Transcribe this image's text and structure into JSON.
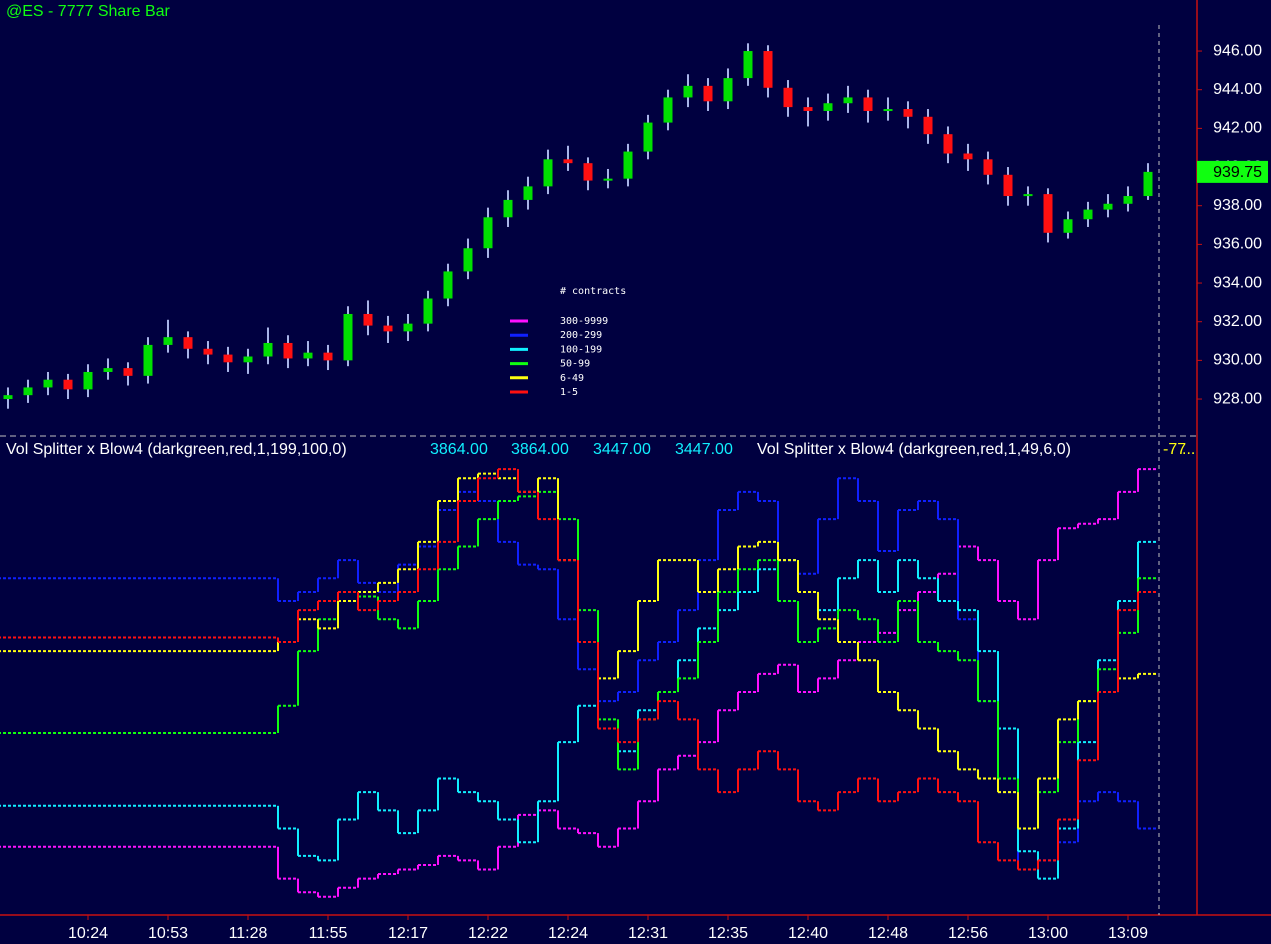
{
  "chart_data": [
    {
      "type": "candlestick",
      "title": "@ES - 7777 Share Bar",
      "open": [
        928.0,
        928.2,
        928.6,
        929.0,
        928.5,
        929.4,
        929.6,
        929.2,
        930.8,
        931.2,
        930.6,
        930.3,
        929.9,
        930.2,
        930.9,
        930.1,
        930.4,
        930.0,
        932.4,
        931.8,
        931.5,
        931.9,
        933.2,
        934.6,
        935.8,
        937.4,
        938.3,
        939.0,
        940.4,
        940.2,
        939.3,
        939.4,
        940.8,
        942.3,
        943.6,
        944.2,
        943.4,
        944.6,
        946.0,
        944.1,
        943.1,
        942.9,
        943.3,
        943.6,
        942.9,
        943.0,
        942.6,
        941.7,
        940.7,
        940.4,
        939.6,
        938.5,
        938.6,
        936.6,
        937.3,
        937.8,
        938.1,
        938.5
      ],
      "high": [
        928.6,
        929.0,
        929.4,
        929.3,
        929.8,
        930.1,
        929.9,
        931.2,
        932.1,
        931.5,
        931.0,
        930.7,
        930.6,
        931.7,
        931.3,
        931.0,
        930.8,
        932.8,
        933.1,
        932.3,
        932.4,
        933.6,
        935.0,
        936.3,
        937.9,
        938.8,
        939.5,
        940.9,
        941.1,
        940.5,
        939.9,
        941.2,
        942.7,
        944.0,
        944.8,
        944.6,
        945.1,
        946.4,
        946.3,
        944.5,
        943.6,
        943.8,
        944.2,
        944.0,
        943.6,
        943.4,
        943.0,
        942.1,
        941.2,
        940.8,
        940.0,
        939.0,
        938.9,
        937.7,
        938.2,
        938.6,
        939.0,
        940.2
      ],
      "low": [
        927.5,
        927.8,
        928.2,
        928.0,
        928.1,
        929.0,
        928.7,
        928.8,
        930.4,
        930.1,
        929.8,
        929.4,
        929.3,
        929.8,
        929.6,
        929.7,
        929.5,
        929.7,
        931.3,
        930.9,
        931.0,
        931.5,
        932.8,
        934.2,
        935.3,
        936.9,
        937.8,
        938.6,
        939.8,
        938.8,
        938.9,
        939.0,
        940.4,
        941.9,
        943.1,
        942.9,
        943.0,
        944.2,
        943.6,
        942.6,
        942.1,
        942.4,
        942.8,
        942.3,
        942.4,
        942.0,
        941.2,
        940.2,
        939.8,
        939.1,
        938.0,
        938.0,
        936.1,
        936.3,
        936.9,
        937.4,
        937.7,
        938.3
      ],
      "close": [
        928.2,
        928.6,
        929.0,
        928.5,
        929.4,
        929.6,
        929.2,
        930.8,
        931.2,
        930.6,
        930.3,
        929.9,
        930.2,
        930.9,
        930.1,
        930.4,
        930.0,
        932.4,
        931.8,
        931.5,
        931.9,
        933.2,
        934.6,
        935.8,
        937.4,
        938.3,
        939.0,
        940.4,
        940.2,
        939.3,
        939.4,
        940.8,
        942.3,
        943.6,
        944.2,
        943.4,
        944.6,
        946.0,
        944.1,
        943.1,
        942.9,
        943.3,
        943.6,
        942.9,
        943.0,
        942.6,
        941.7,
        940.7,
        940.4,
        939.6,
        938.5,
        938.6,
        936.6,
        937.3,
        937.8,
        938.1,
        938.5,
        939.75
      ],
      "up_color": "#00e000",
      "down_color": "#ff1010",
      "wick_color": "#a8b4e8",
      "ylim": [
        926.14,
        948.64
      ],
      "yticks": [
        {
          "value": 928,
          "label": "928.00"
        },
        {
          "value": 930,
          "label": "930.00"
        },
        {
          "value": 932,
          "label": "932.00"
        },
        {
          "value": 934,
          "label": "934.00"
        },
        {
          "value": 936,
          "label": "936.00"
        },
        {
          "value": 938,
          "label": "938.00"
        },
        {
          "value": 940,
          "label": "940.00"
        },
        {
          "value": 942,
          "label": "942.00"
        },
        {
          "value": 944,
          "label": "944.00"
        },
        {
          "value": 946,
          "label": "946.00"
        }
      ],
      "grid": false
    },
    {
      "type": "step",
      "annotations": [
        "Vol Splitter x Blow4 (darkgreen,red,1,199,100,0)",
        "3864.00",
        "3864.00",
        "3447.00",
        "3447.00",
        "Vol Splitter x Blow4 (darkgreen,red,1,49,6,0)",
        "-77",
        "..."
      ],
      "legend_title": "# contracts",
      "categories": [
        null,
        null,
        null,
        null,
        "10:24",
        null,
        null,
        null,
        "10:53",
        null,
        null,
        null,
        "11:28",
        null,
        null,
        null,
        "11:55",
        null,
        null,
        null,
        "12:17",
        null,
        null,
        null,
        "12:22",
        null,
        null,
        null,
        "12:24",
        null,
        null,
        null,
        "12:31",
        null,
        null,
        null,
        "12:35",
        null,
        null,
        null,
        "12:40",
        null,
        null,
        null,
        "12:48",
        null,
        null,
        null,
        "12:56",
        null,
        null,
        null,
        "13:00",
        null,
        null,
        null,
        "13:09",
        null
      ],
      "series": [
        {
          "name": "300-9999",
          "color": "#ff10ff",
          "values": [
            15,
            15,
            15,
            15,
            15,
            15,
            15,
            15,
            15,
            15,
            15,
            15,
            15,
            15,
            8,
            5,
            4,
            6,
            8,
            9,
            10,
            11,
            13,
            12,
            10,
            15,
            22,
            23,
            19,
            18,
            15,
            19,
            25,
            32,
            35,
            38,
            45,
            49,
            53,
            55,
            49,
            52,
            56,
            60,
            62,
            67,
            71,
            75,
            81,
            78,
            69,
            65,
            78,
            85,
            86,
            87,
            93,
            98
          ]
        },
        {
          "name": "200-299",
          "color": "#1020ff",
          "values": [
            74,
            74,
            74,
            74,
            74,
            74,
            74,
            74,
            74,
            74,
            74,
            74,
            74,
            74,
            69,
            71,
            74,
            78,
            73,
            71,
            77,
            81,
            89,
            93,
            91,
            82,
            77,
            76,
            65,
            54,
            47,
            49,
            56,
            60,
            67,
            78,
            89,
            93,
            91,
            78,
            75,
            87,
            96,
            91,
            80,
            89,
            91,
            87,
            65,
            47,
            27,
            10,
            12,
            16,
            25,
            27,
            25,
            19
          ]
        },
        {
          "name": "100-199",
          "color": "#10f0ff",
          "values": [
            24,
            24,
            24,
            24,
            24,
            24,
            24,
            24,
            24,
            24,
            24,
            24,
            24,
            24,
            19,
            13,
            12,
            21,
            27,
            23,
            18,
            23,
            30,
            27,
            25,
            21,
            16,
            25,
            38,
            46,
            41,
            36,
            45,
            49,
            56,
            63,
            67,
            71,
            76,
            78,
            71,
            67,
            74,
            78,
            71,
            78,
            74,
            69,
            67,
            58,
            41,
            14,
            8,
            19,
            38,
            56,
            69,
            82
          ]
        },
        {
          "name": "50-99",
          "color": "#10ff10",
          "values": [
            40,
            40,
            40,
            40,
            40,
            40,
            40,
            40,
            40,
            40,
            40,
            40,
            40,
            40,
            46,
            58,
            65,
            69,
            70,
            65,
            63,
            69,
            76,
            81,
            87,
            91,
            92,
            93,
            87,
            67,
            43,
            32,
            43,
            49,
            52,
            60,
            71,
            76,
            78,
            69,
            60,
            63,
            67,
            65,
            60,
            69,
            60,
            58,
            56,
            47,
            30,
            19,
            27,
            38,
            47,
            54,
            62,
            74
          ]
        },
        {
          "name": "6-49",
          "color": "#ffff10",
          "values": [
            58,
            58,
            58,
            58,
            58,
            58,
            58,
            58,
            58,
            58,
            58,
            58,
            58,
            58,
            60,
            65,
            63,
            69,
            71,
            73,
            76,
            82,
            91,
            96,
            97,
            96,
            93,
            96,
            78,
            60,
            52,
            58,
            69,
            78,
            78,
            71,
            76,
            81,
            82,
            78,
            71,
            65,
            60,
            56,
            49,
            45,
            41,
            36,
            32,
            30,
            27,
            19,
            30,
            43,
            47,
            49,
            52,
            53
          ]
        },
        {
          "name": "1-5",
          "color": "#ff1010",
          "values": [
            61,
            61,
            61,
            61,
            61,
            61,
            61,
            61,
            61,
            61,
            61,
            61,
            61,
            61,
            60,
            67,
            69,
            71,
            67,
            69,
            71,
            76,
            82,
            91,
            96,
            98,
            93,
            87,
            78,
            60,
            41,
            38,
            43,
            47,
            43,
            32,
            27,
            32,
            36,
            32,
            25,
            23,
            27,
            30,
            25,
            27,
            30,
            27,
            25,
            16,
            12,
            10,
            12,
            21,
            34,
            49,
            67,
            71
          ]
        }
      ],
      "ylim": [
        0,
        100
      ]
    }
  ]
}
